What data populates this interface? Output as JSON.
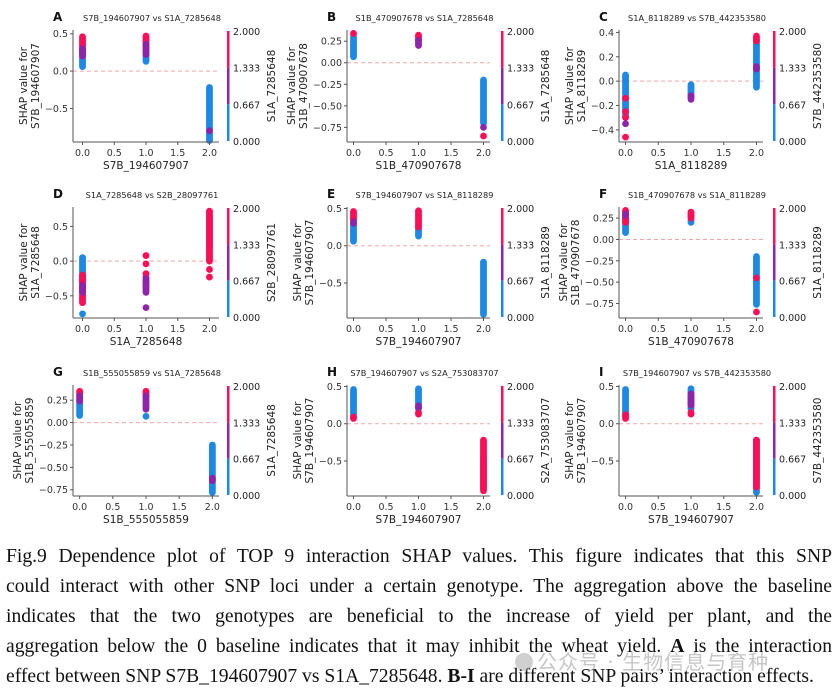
{
  "chart_data": [
    {
      "type": "scatter",
      "panel": "A",
      "title": "S7B_194607907 vs S1A_7285648",
      "xlabel": "S7B_194607907",
      "ylabel": [
        "SHAP value for",
        "S7B_194607907"
      ],
      "colorbar_label": "S1A_7285648",
      "xlim": [
        -0.15,
        2.15
      ],
      "ylim": [
        -0.95,
        0.55
      ],
      "xticks": [
        "0.0",
        "0.5",
        "1.0",
        "1.5",
        "2.0"
      ],
      "yticks": [
        0.5,
        0.0,
        -0.5
      ],
      "ytick_labels": [
        "0.5",
        "0.0",
        "−0.5"
      ],
      "groups": [
        {
          "x": 0,
          "blue": [
            0.06,
            0.28
          ],
          "purple": [
            0.2,
            0.3
          ],
          "pink": [
            0.26,
            0.46
          ]
        },
        {
          "x": 1,
          "blue": [
            0.13,
            0.27
          ],
          "purple": [
            0.22,
            0.36
          ],
          "pink": [
            0.32,
            0.47
          ]
        },
        {
          "x": 2,
          "blue": [
            -0.93,
            -0.22
          ],
          "purple": [
            -0.8,
            -0.8
          ],
          "pink": []
        }
      ]
    },
    {
      "type": "scatter",
      "panel": "B",
      "title": "S1B_470907678 vs S1A_7285648",
      "xlabel": "S1B_470907678",
      "ylabel": [
        "SHAP value for",
        "S1B_470907678"
      ],
      "colorbar_label": "S1A_7285648",
      "xlim": [
        -0.1,
        2.1
      ],
      "ylim": [
        -0.92,
        0.38
      ],
      "xticks": [
        "0.0",
        "0.5",
        "1.0",
        "1.5",
        "2.0"
      ],
      "yticks": [
        0.25,
        0.0,
        -0.25,
        -0.5,
        -0.75
      ],
      "ytick_labels": [
        "0.25",
        "0.00",
        "−0.25",
        "−0.50",
        "−0.75"
      ],
      "groups": [
        {
          "x": 0,
          "blue": [
            0.07,
            0.3
          ],
          "purple": [],
          "pink": [
            0.33,
            0.34
          ]
        },
        {
          "x": 1,
          "blue": [],
          "purple": [
            0.2,
            0.26
          ],
          "pink": [
            0.26,
            0.32
          ]
        },
        {
          "x": 2,
          "blue": [
            -0.7,
            -0.2
          ],
          "purple": [
            -0.75,
            -0.75
          ],
          "pink": [
            -0.85,
            -0.85
          ]
        }
      ]
    },
    {
      "type": "scatter",
      "panel": "C",
      "title": "S1A_8118289 vs S7B_442353580",
      "xlabel": "S1A_8118289",
      "ylabel": [
        "SHAP value for",
        "S1A_8118289"
      ],
      "colorbar_label": "S7B_442353580",
      "xlim": [
        -0.1,
        2.1
      ],
      "ylim": [
        -0.5,
        0.42
      ],
      "xticks": [
        "0.0",
        "0.5",
        "1.0",
        "1.5",
        "2.0"
      ],
      "yticks": [
        0.4,
        0.2,
        0.0,
        -0.2,
        -0.4
      ],
      "ytick_labels": [
        "0.4",
        "0.2",
        "0.0",
        "−0.2",
        "−0.4"
      ],
      "groups": [
        {
          "x": 0,
          "blue": [
            -0.29,
            0.05
          ],
          "purple": [
            -0.35,
            -0.35
          ],
          "pink": [
            -0.46,
            -0.46
          ],
          "pink_pts": [
            -0.14,
            -0.25,
            -0.3
          ]
        },
        {
          "x": 1,
          "blue": [
            -0.12,
            -0.03
          ],
          "purple": [
            -0.15,
            -0.12
          ],
          "pink": []
        },
        {
          "x": 2,
          "blue": [
            -0.05,
            0.33
          ],
          "purple": [
            0.1,
            0.12
          ],
          "pink": [
            0.33,
            0.37
          ]
        }
      ]
    },
    {
      "type": "scatter",
      "panel": "D",
      "title": "S1A_7285648 vs S2B_28097761",
      "xlabel": "S1A_7285648",
      "ylabel": [
        "SHAP value for",
        "S1A_7285648"
      ],
      "colorbar_label": "S2B_28097761",
      "xlim": [
        -0.15,
        2.15
      ],
      "ylim": [
        -0.82,
        0.78
      ],
      "xticks": [
        "0.0",
        "0.5",
        "1.0",
        "1.5",
        "2.0"
      ],
      "yticks": [
        0.5,
        0.0,
        -0.5
      ],
      "ytick_labels": [
        "0.5",
        "0.0",
        "−0.5"
      ],
      "groups": [
        {
          "x": 0,
          "blue": [
            -0.3,
            0.05
          ],
          "purple": [
            -0.45,
            -0.35
          ],
          "pink": [
            -0.6,
            -0.2
          ],
          "blue_pts": [
            -0.76
          ]
        },
        {
          "x": 1,
          "blue": [],
          "purple": [
            -0.45,
            -0.25
          ],
          "pink_pts": [
            0.08,
            -0.04,
            -0.18,
            -0.23,
            -0.3
          ],
          "purple_pts": [
            -0.67
          ]
        },
        {
          "x": 2,
          "blue": [
            0.2,
            0.65
          ],
          "purple": [],
          "pink": [
            0.0,
            0.72
          ],
          "pink_pts": [
            -0.12,
            -0.23
          ]
        }
      ]
    },
    {
      "type": "scatter",
      "panel": "E",
      "title": "S7B_194607907 vs S1A_8118289",
      "xlabel": "S7B_194607907",
      "ylabel": [
        "SHAP value for",
        "S7B_194607907"
      ],
      "colorbar_label": "S1A_8118289",
      "xlim": [
        -0.1,
        2.1
      ],
      "ylim": [
        -0.97,
        0.52
      ],
      "xticks": [
        "0.0",
        "0.5",
        "1.0",
        "1.5",
        "2.0"
      ],
      "yticks": [
        0.5,
        0.0,
        -0.5
      ],
      "ytick_labels": [
        "0.5",
        "0.0",
        "−0.5"
      ],
      "groups": [
        {
          "x": 0,
          "blue": [
            0.06,
            0.3
          ],
          "purple": [
            0.3,
            0.32
          ],
          "pink": [
            0.34,
            0.46
          ]
        },
        {
          "x": 1,
          "blue": [
            0.13,
            0.25
          ],
          "purple": [],
          "pink": [
            0.25,
            0.47
          ]
        },
        {
          "x": 2,
          "blue": [
            -0.92,
            -0.22
          ],
          "purple": [],
          "pink": []
        }
      ]
    },
    {
      "type": "scatter",
      "panel": "F",
      "title": "S1B_470907678 vs S1A_8118289",
      "xlabel": "S1B_470907678",
      "ylabel": [
        "SHAP value for",
        "S1B_470907678"
      ],
      "colorbar_label": "S1A_8118289",
      "xlim": [
        -0.1,
        2.1
      ],
      "ylim": [
        -0.92,
        0.38
      ],
      "xticks": [
        "0.0",
        "0.5",
        "1.0",
        "1.5",
        "2.0"
      ],
      "yticks": [
        0.25,
        0.0,
        -0.25,
        -0.5,
        -0.75
      ],
      "ytick_labels": [
        "0.25",
        "0.00",
        "−0.25",
        "−0.50",
        "−0.75"
      ],
      "groups": [
        {
          "x": 0,
          "blue": [
            0.08,
            0.25
          ],
          "purple": [
            0.28,
            0.3
          ],
          "pink": [
            0.2,
            0.34
          ]
        },
        {
          "x": 1,
          "blue": [
            0.2,
            0.22
          ],
          "purple": [],
          "pink": [
            0.25,
            0.32
          ]
        },
        {
          "x": 2,
          "blue": [
            -0.76,
            -0.2
          ],
          "purple": [],
          "pink": [
            -0.45,
            -0.45
          ],
          "pink_pts": [
            -0.85
          ]
        }
      ]
    },
    {
      "type": "scatter",
      "panel": "G",
      "title": "S1B_555055859 vs S1A_7285648",
      "xlabel": "S1B_555055859",
      "ylabel": [
        "SHAP value for",
        "S1B_555055859"
      ],
      "colorbar_label": "S1A_7285648",
      "xlim": [
        -0.1,
        2.1
      ],
      "ylim": [
        -0.82,
        0.42
      ],
      "xticks": [
        "0.0",
        "0.5",
        "1.0",
        "1.5",
        "2.0"
      ],
      "yticks": [
        0.25,
        0.0,
        -0.25,
        -0.5,
        -0.75
      ],
      "ytick_labels": [
        "0.25",
        "0.00",
        "−0.25",
        "−0.50",
        "−0.75"
      ],
      "groups": [
        {
          "x": 0,
          "blue": [
            0.08,
            0.25
          ],
          "purple": [
            0.24,
            0.3
          ],
          "pink": [
            0.3,
            0.35
          ]
        },
        {
          "x": 1,
          "blue": [
            0.07,
            0.07
          ],
          "purple": [
            0.15,
            0.3
          ],
          "pink": [
            0.3,
            0.35
          ]
        },
        {
          "x": 2,
          "blue": [
            -0.78,
            -0.25
          ],
          "purple": [
            -0.65,
            -0.62
          ],
          "pink": []
        }
      ]
    },
    {
      "type": "scatter",
      "panel": "H",
      "title": "S7B_194607907 vs S2A_753083707",
      "xlabel": "S7B_194607907",
      "ylabel": [
        "SHAP value for",
        "S7B_194607907"
      ],
      "colorbar_label": "S2A_753083707",
      "xlim": [
        -0.1,
        2.1
      ],
      "ylim": [
        -0.97,
        0.52
      ],
      "xticks": [
        "0.0",
        "0.5",
        "1.0",
        "1.5",
        "2.0"
      ],
      "yticks": [
        0.5,
        0.0,
        -0.5
      ],
      "ytick_labels": [
        "0.5",
        "0.0",
        "−0.5"
      ],
      "groups": [
        {
          "x": 0,
          "blue": [
            0.1,
            0.46
          ],
          "purple": [],
          "pink": [
            0.07,
            0.09
          ]
        },
        {
          "x": 1,
          "blue": [
            0.2,
            0.47
          ],
          "purple": [
            0.22,
            0.24
          ],
          "pink": [
            0.13,
            0.15
          ]
        },
        {
          "x": 2,
          "blue": [
            -0.85,
            -0.45
          ],
          "purple": [],
          "pink": [
            -0.9,
            -0.22
          ]
        }
      ]
    },
    {
      "type": "scatter",
      "panel": "I",
      "title": "S7B_194607907 vs S7B_442353580",
      "xlabel": "S7B_194607907",
      "ylabel": [
        "SHAP value for",
        "S7B_194607907"
      ],
      "colorbar_label": "S7B_442353580",
      "xlim": [
        -0.1,
        2.1
      ],
      "ylim": [
        -0.97,
        0.52
      ],
      "xticks": [
        "0.0",
        "0.5",
        "1.0",
        "1.5",
        "2.0"
      ],
      "yticks": [
        0.5,
        0.0,
        -0.5
      ],
      "ytick_labels": [
        "0.5",
        "0.0",
        "−0.5"
      ],
      "groups": [
        {
          "x": 0,
          "blue": [
            0.12,
            0.46
          ],
          "purple": [],
          "pink": [
            0.07,
            0.12
          ]
        },
        {
          "x": 1,
          "blue": [
            0.2,
            0.47
          ],
          "purple": [
            0.25,
            0.4
          ],
          "pink": [
            0.13,
            0.15
          ]
        },
        {
          "x": 2,
          "blue": [
            -0.92,
            -0.22
          ],
          "purple": [],
          "pink": [
            -0.85,
            -0.22
          ]
        }
      ]
    }
  ],
  "colorbar": {
    "ticks": [
      "2.000",
      "1.333",
      "0.667",
      "0.000"
    ],
    "range": [
      0,
      2
    ]
  },
  "colors": {
    "blue": "#1e88e5",
    "purple": "#8e24aa",
    "pink": "#ff0d57",
    "baseline": "#f4a6a6",
    "axis": "#555555"
  },
  "caption": {
    "line1": "Fig.9 Dependence plot of TOP 9 interaction SHAP values. This figure indicates that this SNP",
    "line2": "could interact with other SNP loci under a certain genotype. The aggregation above the baseline",
    "line3": "indicates that the two genotypes are beneficial to the increase of yield per plant, and the",
    "line4_a": "aggregation below the 0 baseline indicates that it may inhibit the wheat yield. ",
    "line4_bold": "A",
    "line4_b": " is the interaction",
    "line5_a": "effect between SNP S7B_194607907 vs S1A_7285648. ",
    "line5_bold": "B-I",
    "line5_b": " are different SNP pairs’ interaction effects."
  },
  "watermark": "公众号 · 生物信息与育种"
}
